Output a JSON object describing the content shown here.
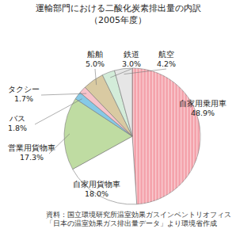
{
  "chart_data": {
    "type": "pie",
    "title": "運輸部門における二酸化炭素排出量の内訳",
    "subtitle": "（2005年度）",
    "categories": [
      "自家用乗用車",
      "自家用貨物車",
      "営業用貨物車",
      "バス",
      "タクシー",
      "船舶",
      "鉄道",
      "航空"
    ],
    "values": [
      48.9,
      18.0,
      17.3,
      1.8,
      1.7,
      5.0,
      3.0,
      4.2
    ],
    "value_labels": [
      "48.9%",
      "18.0%",
      "17.3%",
      "1.8%",
      "1.7%",
      "5.0%",
      "3.0%",
      "4.2%"
    ],
    "colors": [
      "#f4a3ac",
      "#ffffff",
      "#bfdca2",
      "#86c9e6",
      "#f7c3cb",
      "#d9caa2",
      "#d3ecd9",
      "#e6e6e6"
    ],
    "data_labels": true,
    "source": "資料：国立環境研究所温室効果ガスインベントリオフィス「日本の温室効果ガス排出量データ」より環境省作成"
  }
}
